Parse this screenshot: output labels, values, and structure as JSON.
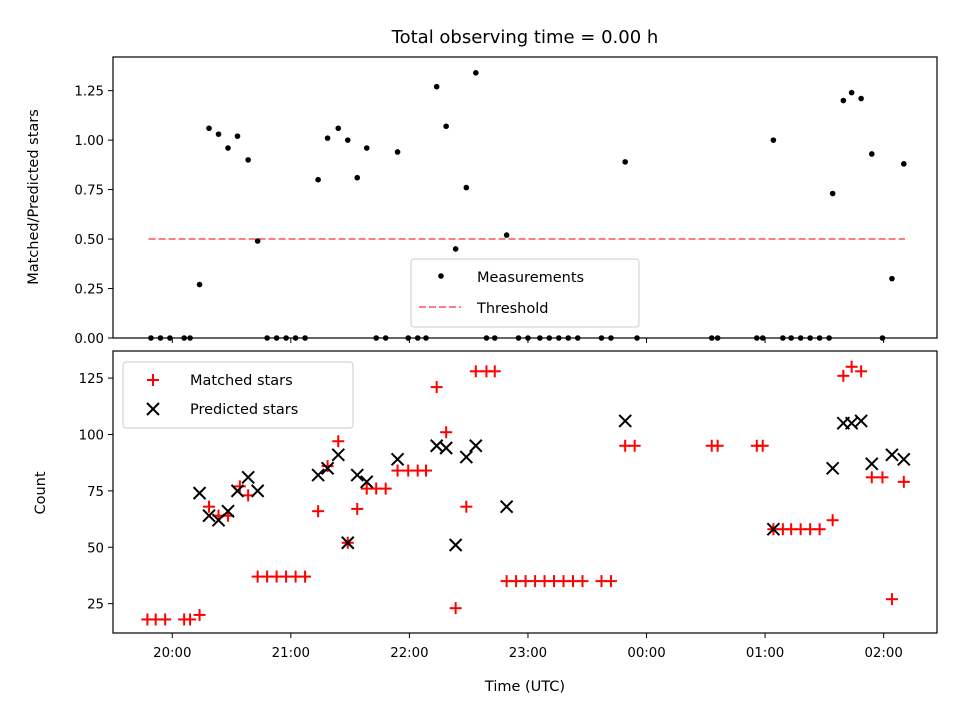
{
  "chart_data": [
    {
      "type": "scatter",
      "title": "Total observing time = 0.00 h",
      "xlabel": "",
      "ylabel": "Matched/Predicted stars",
      "x_axis": "time (hours since 20:00 UTC)",
      "ylim": [
        0,
        1.42
      ],
      "yticks": [
        0.0,
        0.25,
        0.5,
        0.75,
        1.0,
        1.25
      ],
      "ytick_labels": [
        "0.00",
        "0.25",
        "0.50",
        "0.75",
        "1.00",
        "1.25"
      ],
      "legend_position": "lower-center",
      "series": [
        {
          "name": "Measurements",
          "marker": "dot",
          "color": "#000000",
          "points": [
            [
              -0.18,
              0
            ],
            [
              -0.1,
              0
            ],
            [
              -0.02,
              0
            ],
            [
              0.1,
              0
            ],
            [
              0.15,
              0
            ],
            [
              0.23,
              0.27
            ],
            [
              0.31,
              1.06
            ],
            [
              0.39,
              1.03
            ],
            [
              0.47,
              0.96
            ],
            [
              0.55,
              1.02
            ],
            [
              0.64,
              0.9
            ],
            [
              0.72,
              0.49
            ],
            [
              0.8,
              0
            ],
            [
              0.88,
              0
            ],
            [
              0.96,
              0
            ],
            [
              1.04,
              0
            ],
            [
              1.12,
              0
            ],
            [
              1.23,
              0.8
            ],
            [
              1.31,
              1.01
            ],
            [
              1.4,
              1.06
            ],
            [
              1.48,
              1.0
            ],
            [
              1.56,
              0.81
            ],
            [
              1.64,
              0.96
            ],
            [
              1.72,
              0
            ],
            [
              1.8,
              0
            ],
            [
              1.9,
              0.94
            ],
            [
              1.99,
              0
            ],
            [
              2.07,
              0
            ],
            [
              2.14,
              0
            ],
            [
              2.23,
              1.27
            ],
            [
              2.31,
              1.07
            ],
            [
              2.39,
              0.45
            ],
            [
              2.48,
              0.76
            ],
            [
              2.56,
              1.34
            ],
            [
              2.65,
              0
            ],
            [
              2.72,
              0
            ],
            [
              2.82,
              0.52
            ],
            [
              2.92,
              0
            ],
            [
              3.0,
              0
            ],
            [
              3.1,
              0
            ],
            [
              3.18,
              0
            ],
            [
              3.26,
              0
            ],
            [
              3.34,
              0
            ],
            [
              3.42,
              0
            ],
            [
              3.62,
              0
            ],
            [
              3.7,
              0
            ],
            [
              3.82,
              0.89
            ],
            [
              3.92,
              0
            ],
            [
              4.55,
              0
            ],
            [
              4.6,
              0
            ],
            [
              4.93,
              0
            ],
            [
              4.98,
              0
            ],
            [
              5.07,
              1.0
            ],
            [
              5.15,
              0
            ],
            [
              5.22,
              0
            ],
            [
              5.3,
              0
            ],
            [
              5.38,
              0
            ],
            [
              5.46,
              0
            ],
            [
              5.54,
              0
            ],
            [
              5.57,
              0.73
            ],
            [
              5.66,
              1.2
            ],
            [
              5.73,
              1.24
            ],
            [
              5.81,
              1.21
            ],
            [
              5.9,
              0.93
            ],
            [
              5.99,
              0
            ],
            [
              6.07,
              0.3
            ],
            [
              6.17,
              0.88
            ]
          ]
        },
        {
          "name": "Threshold",
          "marker": "dashed-line",
          "color": "#ff7f7f",
          "points": [
            [
              -0.2,
              0.5
            ],
            [
              6.18,
              0.5
            ]
          ]
        }
      ]
    },
    {
      "type": "scatter",
      "title": "",
      "xlabel": "Time (UTC)",
      "ylabel": "Count",
      "x_axis": "time (hours since 20:00 UTC)",
      "xlim": [
        -0.5,
        6.45
      ],
      "xticks": [
        0,
        1,
        2,
        3,
        4,
        5,
        6
      ],
      "xtick_labels": [
        "20:00",
        "21:00",
        "22:00",
        "23:00",
        "00:00",
        "01:00",
        "02:00"
      ],
      "ylim": [
        12,
        137
      ],
      "yticks": [
        25,
        50,
        75,
        100,
        125
      ],
      "ytick_labels": [
        "25",
        "50",
        "75",
        "100",
        "125"
      ],
      "legend_position": "top-left",
      "series": [
        {
          "name": "Matched stars",
          "marker": "plus",
          "color": "#ff0000",
          "points": [
            [
              -0.21,
              18
            ],
            [
              -0.14,
              18
            ],
            [
              -0.06,
              18
            ],
            [
              0.1,
              18
            ],
            [
              0.15,
              18
            ],
            [
              0.23,
              20
            ],
            [
              0.31,
              68
            ],
            [
              0.39,
              64
            ],
            [
              0.47,
              64
            ],
            [
              0.57,
              77
            ],
            [
              0.64,
              73
            ],
            [
              0.72,
              37
            ],
            [
              0.8,
              37
            ],
            [
              0.88,
              37
            ],
            [
              0.96,
              37
            ],
            [
              1.04,
              37
            ],
            [
              1.12,
              37
            ],
            [
              1.23,
              66
            ],
            [
              1.31,
              86
            ],
            [
              1.4,
              97
            ],
            [
              1.48,
              52
            ],
            [
              1.56,
              67
            ],
            [
              1.64,
              76
            ],
            [
              1.72,
              76
            ],
            [
              1.8,
              76
            ],
            [
              1.9,
              84
            ],
            [
              1.99,
              84
            ],
            [
              2.07,
              84
            ],
            [
              2.14,
              84
            ],
            [
              2.23,
              121
            ],
            [
              2.31,
              101
            ],
            [
              2.39,
              23
            ],
            [
              2.48,
              68
            ],
            [
              2.56,
              128
            ],
            [
              2.65,
              128
            ],
            [
              2.72,
              128
            ],
            [
              2.82,
              35
            ],
            [
              2.9,
              35
            ],
            [
              2.98,
              35
            ],
            [
              3.06,
              35
            ],
            [
              3.14,
              35
            ],
            [
              3.22,
              35
            ],
            [
              3.3,
              35
            ],
            [
              3.38,
              35
            ],
            [
              3.46,
              35
            ],
            [
              3.62,
              35
            ],
            [
              3.7,
              35
            ],
            [
              3.82,
              95
            ],
            [
              3.9,
              95
            ],
            [
              4.55,
              95
            ],
            [
              4.6,
              95
            ],
            [
              4.93,
              95
            ],
            [
              4.98,
              95
            ],
            [
              5.07,
              58
            ],
            [
              5.15,
              58
            ],
            [
              5.22,
              58
            ],
            [
              5.3,
              58
            ],
            [
              5.38,
              58
            ],
            [
              5.46,
              58
            ],
            [
              5.57,
              62
            ],
            [
              5.66,
              126
            ],
            [
              5.73,
              130
            ],
            [
              5.81,
              128
            ],
            [
              5.9,
              81
            ],
            [
              5.99,
              81
            ],
            [
              6.07,
              27
            ],
            [
              6.17,
              79
            ]
          ]
        },
        {
          "name": "Predicted stars",
          "marker": "x",
          "color": "#000000",
          "points": [
            [
              0.23,
              74
            ],
            [
              0.31,
              64
            ],
            [
              0.39,
              62
            ],
            [
              0.47,
              66
            ],
            [
              0.55,
              75
            ],
            [
              0.64,
              81
            ],
            [
              0.72,
              75
            ],
            [
              1.23,
              82
            ],
            [
              1.31,
              85
            ],
            [
              1.4,
              91
            ],
            [
              1.48,
              52
            ],
            [
              1.56,
              82
            ],
            [
              1.64,
              79
            ],
            [
              1.9,
              89
            ],
            [
              2.23,
              95
            ],
            [
              2.31,
              94
            ],
            [
              2.39,
              51
            ],
            [
              2.48,
              90
            ],
            [
              2.56,
              95
            ],
            [
              2.82,
              68
            ],
            [
              3.82,
              106
            ],
            [
              5.07,
              58
            ],
            [
              5.57,
              85
            ],
            [
              5.66,
              105
            ],
            [
              5.73,
              105
            ],
            [
              5.81,
              106
            ],
            [
              5.9,
              87
            ],
            [
              6.07,
              91
            ],
            [
              6.17,
              89
            ]
          ]
        }
      ]
    }
  ]
}
